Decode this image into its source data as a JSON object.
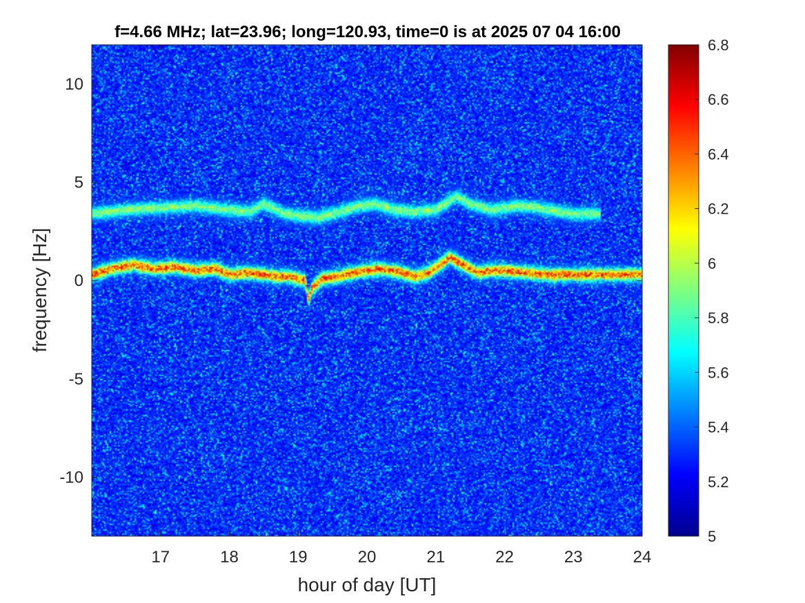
{
  "chart_data": {
    "type": "heatmap",
    "title": "f=4.66 MHz;  lat=23.96; long=120.93, time=0 is at 2025 07 04 16:00",
    "xlabel": "hour of day [UT]",
    "ylabel": "frequency [Hz]",
    "xlim": [
      16.0,
      24.0
    ],
    "ylim": [
      -13.0,
      12.0
    ],
    "x_ticks": [
      17,
      18,
      19,
      20,
      21,
      22,
      23,
      24
    ],
    "x_tick_labels": [
      "17",
      "18",
      "19",
      "20",
      "21",
      "22",
      "23",
      "24"
    ],
    "y_ticks": [
      -10,
      -5,
      0,
      5,
      10
    ],
    "y_tick_labels": [
      "-10",
      "-5",
      "0",
      "5",
      "10"
    ],
    "colorbar": {
      "colormap": "jet",
      "clim": [
        5.0,
        6.8
      ],
      "ticks": [
        5,
        5.2,
        5.4,
        5.6,
        5.8,
        6,
        6.2,
        6.4,
        6.6,
        6.8
      ],
      "tick_labels": [
        "5",
        "5.2",
        "5.4",
        "5.6",
        "5.8",
        "6",
        "6.2",
        "6.4",
        "6.6",
        "6.8"
      ]
    },
    "background_level": 5.25,
    "traces": [
      {
        "points": [
          [
            16.0,
            0.3
          ],
          [
            16.3,
            0.6
          ],
          [
            16.6,
            0.8
          ],
          [
            16.9,
            0.6
          ],
          [
            17.2,
            0.7
          ],
          [
            17.5,
            0.5
          ],
          [
            17.8,
            0.6
          ],
          [
            18.0,
            0.3
          ],
          [
            18.3,
            0.4
          ],
          [
            18.5,
            0.3
          ],
          [
            18.7,
            0.2
          ],
          [
            18.9,
            0.2
          ],
          [
            19.1,
            0.0
          ],
          [
            19.15,
            -1.0
          ],
          [
            19.2,
            -0.4
          ],
          [
            19.35,
            0.1
          ],
          [
            19.6,
            0.2
          ],
          [
            19.8,
            0.4
          ],
          [
            20.0,
            0.5
          ],
          [
            20.2,
            0.6
          ],
          [
            20.5,
            0.4
          ],
          [
            20.7,
            0.2
          ],
          [
            20.9,
            0.4
          ],
          [
            21.1,
            0.9
          ],
          [
            21.2,
            1.2
          ],
          [
            21.4,
            0.8
          ],
          [
            21.6,
            0.4
          ],
          [
            21.8,
            0.5
          ],
          [
            22.0,
            0.5
          ],
          [
            22.3,
            0.4
          ],
          [
            22.6,
            0.3
          ],
          [
            23.0,
            0.3
          ],
          [
            23.5,
            0.3
          ],
          [
            24.0,
            0.3
          ]
        ],
        "peak": 6.7
      },
      {
        "points": [
          [
            16.0,
            3.4
          ],
          [
            16.5,
            3.6
          ],
          [
            17.0,
            3.7
          ],
          [
            17.5,
            3.8
          ],
          [
            18.0,
            3.6
          ],
          [
            18.3,
            3.5
          ],
          [
            18.5,
            3.9
          ],
          [
            18.8,
            3.4
          ],
          [
            19.0,
            3.3
          ],
          [
            19.3,
            3.2
          ],
          [
            19.6,
            3.5
          ],
          [
            19.9,
            3.8
          ],
          [
            20.1,
            3.9
          ],
          [
            20.4,
            3.6
          ],
          [
            20.7,
            3.5
          ],
          [
            21.0,
            3.6
          ],
          [
            21.3,
            4.3
          ],
          [
            21.5,
            3.9
          ],
          [
            21.8,
            3.6
          ],
          [
            22.2,
            3.8
          ],
          [
            22.5,
            3.7
          ],
          [
            22.8,
            3.5
          ],
          [
            23.0,
            3.4
          ],
          [
            23.4,
            3.4
          ]
        ],
        "peak": 6.1
      }
    ]
  }
}
